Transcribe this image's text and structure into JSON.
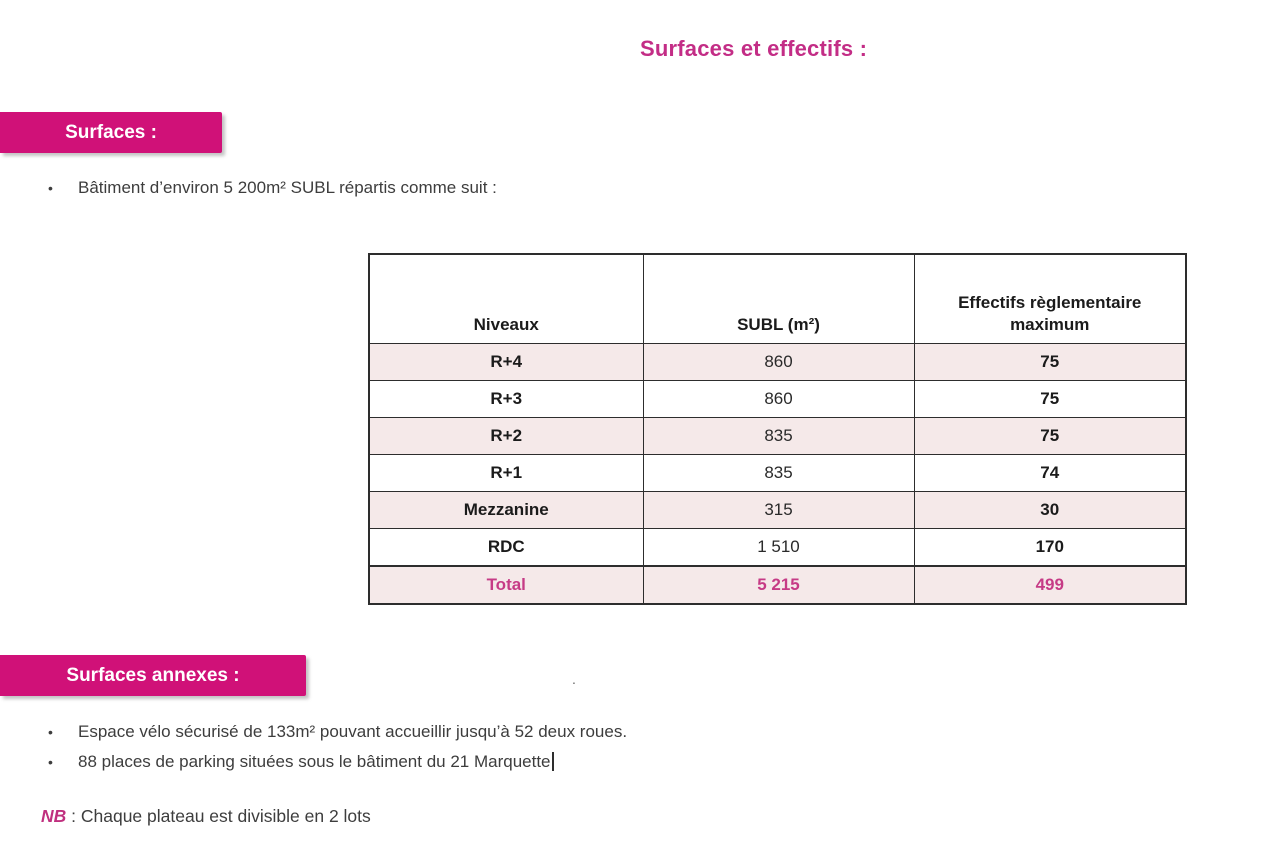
{
  "page": {
    "title": "Surfaces et effectifs :"
  },
  "sections": {
    "surfaces": {
      "banner_label": "Surfaces :",
      "bullet": "Bâtiment d’environ 5 200m² SUBL répartis comme suit :"
    },
    "annexes": {
      "banner_label": "Surfaces annexes :",
      "stray_dot": ".",
      "bullets": [
        "Espace vélo sécurisé de 133m² pouvant accueillir jusqu’à 52 deux roues.",
        "88 places de parking situées sous le bâtiment du 21 Marquette"
      ]
    },
    "nb": {
      "label": "NB",
      "text": " : Chaque plateau est divisible en 2 lots"
    }
  },
  "table": {
    "headers": [
      "Niveaux",
      "SUBL (m²)",
      "Effectifs règlementaire maximum"
    ],
    "rows": [
      {
        "niveau": "R+4",
        "subl": "860",
        "effectif": "75",
        "shaded": true,
        "total": false
      },
      {
        "niveau": "R+3",
        "subl": "860",
        "effectif": "75",
        "shaded": false,
        "total": false
      },
      {
        "niveau": "R+2",
        "subl": "835",
        "effectif": "75",
        "shaded": true,
        "total": false
      },
      {
        "niveau": "R+1",
        "subl": "835",
        "effectif": "74",
        "shaded": false,
        "total": false
      },
      {
        "niveau": "Mezzanine",
        "subl": "315",
        "effectif": "30",
        "shaded": true,
        "total": false
      },
      {
        "niveau": "RDC",
        "subl": "1 510",
        "effectif": "170",
        "shaded": false,
        "total": false
      },
      {
        "niveau": "Total",
        "subl": "5 215",
        "effectif": "499",
        "shaded": true,
        "total": true
      }
    ]
  },
  "colors": {
    "banner-pink": "#d01178",
    "title-pink": "#c32d86",
    "total-pink": "#c63b86",
    "nb-pink": "#c0307f",
    "rose": "#f5e9e9",
    "text": "#3d3d3d",
    "border": "#2d2d2d"
  }
}
